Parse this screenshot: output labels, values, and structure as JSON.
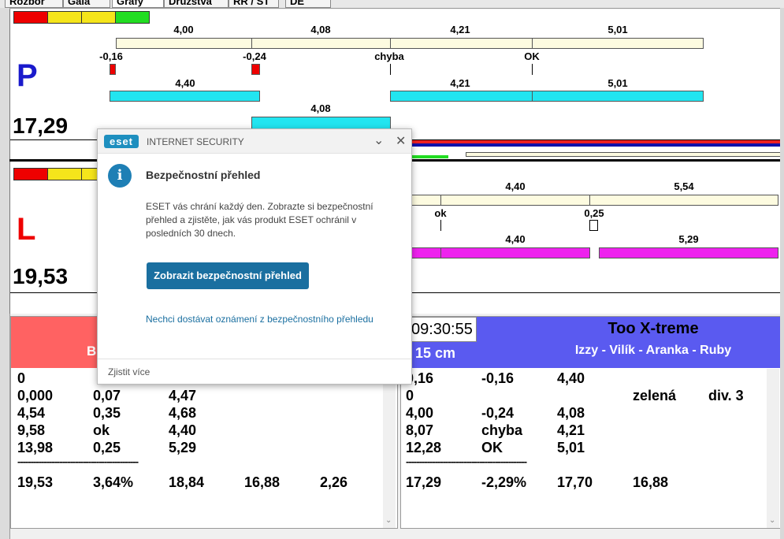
{
  "tabs": [
    "Rozbor",
    "Gaia",
    "Grafy",
    "Družstva",
    "RR / ST",
    "DE"
  ],
  "colors": {
    "red": "#ee0000",
    "yellow": "#f5e51b",
    "green": "#22dd22",
    "cream": "#fdfbe0",
    "cyan": "#22e5f0",
    "magenta": "#ee22ee",
    "blue_header": "#5a5af0",
    "red_header": "#ff6262"
  },
  "top": {
    "letter": "P",
    "total": "17,29",
    "row1_labels": [
      "4,00",
      "4,08",
      "4,21",
      "5,01"
    ],
    "row2_labels": [
      "-0,16",
      "-0,24",
      "chyba",
      "OK"
    ],
    "row3_labels": [
      "4,40",
      "4,21",
      "5,01"
    ],
    "row4_labels": [
      "4,08"
    ]
  },
  "bottom": {
    "letter": "L",
    "total": "19,53",
    "row1_labels": [
      "4,40",
      "5,54"
    ],
    "row2_labels": [
      "ok",
      "0,25"
    ],
    "row3_labels": [
      "4,40",
      "5,29"
    ]
  },
  "left_panel": {
    "header_text": "B",
    "rows": [
      [
        "0",
        "",
        ""
      ],
      [
        "0,000",
        "0,07",
        "4,47"
      ],
      [
        "4,54",
        "0,35",
        "4,68"
      ],
      [
        "9,58",
        "ok",
        "4,40"
      ],
      [
        "13,98",
        "0,25",
        "5,29"
      ]
    ],
    "separator": "----------------------------------------------",
    "totals": [
      "19,53",
      "3,64%",
      "18,84",
      "16,88",
      "2,26"
    ]
  },
  "right_panel": {
    "time": "09:30:55",
    "distance": "15 cm",
    "team_name": "Too X-treme",
    "members": "Izzy - Vilík - Aranka - Ruby",
    "rows": [
      [
        "0,16",
        "-0,16",
        "4,40",
        "",
        ""
      ],
      [
        "0",
        "",
        "",
        "zelená",
        "div. 3"
      ],
      [
        "4,00",
        "-0,24",
        "4,08",
        "",
        ""
      ],
      [
        "8,07",
        "chyba",
        "4,21",
        "",
        ""
      ],
      [
        "12,28",
        "OK",
        "5,01",
        "",
        ""
      ]
    ],
    "separator": "----------------------------------------------",
    "totals": [
      "17,29",
      "-2,29%",
      "17,70",
      "16,88"
    ]
  },
  "dialog": {
    "brand": "eset",
    "product": "INTERNET SECURITY",
    "title": "Bezpečnostní přehled",
    "body": "ESET vás chrání každý den. Zobrazte si bezpečnostní přehled a zjistěte, jak vás produkt ESET ochránil v posledních 30 dnech.",
    "button": "Zobrazit bezpečnostní přehled",
    "link": "Nechci dostávat oznámení z bezpečnostního přehledu",
    "footer": "Zjistit více"
  }
}
